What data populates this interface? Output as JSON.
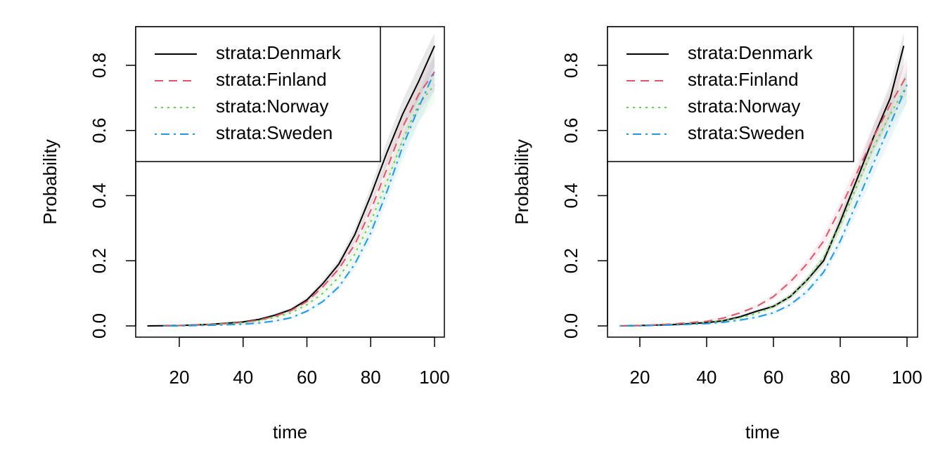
{
  "colors": {
    "Denmark": "#000000",
    "Finland": "#DF536B",
    "Norway": "#61D04F",
    "Sweden": "#2297E6"
  },
  "line_styles": {
    "Denmark": "solid",
    "Finland": "dashed",
    "Norway": "dotted",
    "Sweden": "dotdash"
  },
  "chart_data": [
    {
      "type": "line",
      "xlabel": "time",
      "ylabel": "Probability",
      "xlim": [
        10,
        100
      ],
      "ylim": [
        0,
        0.86
      ],
      "x_ticks": [
        20,
        40,
        60,
        80,
        100
      ],
      "x_tick_labels": [
        "20",
        "40",
        "60",
        "80",
        "100"
      ],
      "y_ticks": [
        0,
        0.2,
        0.4,
        0.6,
        0.8
      ],
      "y_tick_labels": [
        "0.0",
        "0.2",
        "0.4",
        "0.6",
        "0.8"
      ],
      "legend_position": "top-left",
      "confidence_bands": true,
      "series": [
        {
          "name": "strata:Denmark",
          "key": "Denmark",
          "x": [
            10,
            20,
            30,
            40,
            45,
            50,
            55,
            60,
            65,
            70,
            75,
            80,
            85,
            90,
            95,
            100
          ],
          "y": [
            0,
            0.001,
            0.005,
            0.012,
            0.02,
            0.033,
            0.05,
            0.08,
            0.13,
            0.19,
            0.28,
            0.4,
            0.53,
            0.65,
            0.75,
            0.86
          ]
        },
        {
          "name": "strata:Finland",
          "key": "Finland",
          "x": [
            15,
            20,
            30,
            40,
            45,
            50,
            55,
            60,
            65,
            70,
            75,
            80,
            85,
            90,
            95,
            100
          ],
          "y": [
            0,
            0.001,
            0.004,
            0.011,
            0.018,
            0.03,
            0.047,
            0.075,
            0.12,
            0.175,
            0.25,
            0.355,
            0.48,
            0.61,
            0.71,
            0.78
          ]
        },
        {
          "name": "strata:Norway",
          "key": "Norway",
          "x": [
            15,
            20,
            30,
            40,
            45,
            50,
            55,
            60,
            65,
            70,
            75,
            80,
            85,
            90,
            95,
            100
          ],
          "y": [
            0,
            0.001,
            0.004,
            0.01,
            0.016,
            0.026,
            0.04,
            0.065,
            0.1,
            0.15,
            0.22,
            0.32,
            0.44,
            0.57,
            0.68,
            0.74
          ]
        },
        {
          "name": "strata:Sweden",
          "key": "Sweden",
          "x": [
            15,
            20,
            30,
            40,
            45,
            50,
            55,
            60,
            65,
            70,
            75,
            80,
            85,
            90,
            95,
            100
          ],
          "y": [
            0,
            0.0,
            0.002,
            0.005,
            0.009,
            0.015,
            0.025,
            0.045,
            0.075,
            0.12,
            0.19,
            0.285,
            0.41,
            0.55,
            0.67,
            0.78
          ]
        }
      ]
    },
    {
      "type": "line",
      "xlabel": "time",
      "ylabel": "Probability",
      "xlim": [
        14,
        100
      ],
      "ylim": [
        0,
        0.86
      ],
      "x_ticks": [
        20,
        40,
        60,
        80,
        100
      ],
      "x_tick_labels": [
        "20",
        "40",
        "60",
        "80",
        "100"
      ],
      "y_ticks": [
        0,
        0.2,
        0.4,
        0.6,
        0.8
      ],
      "y_tick_labels": [
        "0.0",
        "0.2",
        "0.4",
        "0.6",
        "0.8"
      ],
      "legend_position": "top-left",
      "confidence_bands": true,
      "series": [
        {
          "name": "strata:Denmark",
          "key": "Denmark",
          "x": [
            14,
            20,
            30,
            40,
            45,
            50,
            55,
            60,
            65,
            70,
            75,
            80,
            85,
            90,
            95,
            99
          ],
          "y": [
            0,
            0.001,
            0.004,
            0.01,
            0.016,
            0.028,
            0.045,
            0.06,
            0.09,
            0.14,
            0.2,
            0.32,
            0.45,
            0.58,
            0.7,
            0.86
          ]
        },
        {
          "name": "strata:Finland",
          "key": "Finland",
          "x": [
            14,
            20,
            30,
            40,
            45,
            50,
            55,
            60,
            65,
            70,
            75,
            80,
            85,
            90,
            95,
            100
          ],
          "y": [
            0,
            0.001,
            0.006,
            0.014,
            0.024,
            0.04,
            0.06,
            0.09,
            0.135,
            0.19,
            0.26,
            0.36,
            0.47,
            0.58,
            0.68,
            0.77
          ]
        },
        {
          "name": "strata:Norway",
          "key": "Norway",
          "x": [
            14,
            20,
            30,
            40,
            45,
            50,
            55,
            60,
            65,
            70,
            75,
            80,
            85,
            90,
            95,
            100
          ],
          "y": [
            0,
            0.001,
            0.004,
            0.01,
            0.016,
            0.025,
            0.038,
            0.06,
            0.09,
            0.14,
            0.21,
            0.31,
            0.43,
            0.55,
            0.65,
            0.74
          ]
        },
        {
          "name": "strata:Sweden",
          "key": "Sweden",
          "x": [
            14,
            20,
            30,
            40,
            45,
            50,
            55,
            60,
            65,
            70,
            75,
            80,
            85,
            90,
            95,
            100
          ],
          "y": [
            0,
            0.0,
            0.003,
            0.007,
            0.011,
            0.018,
            0.027,
            0.04,
            0.065,
            0.105,
            0.165,
            0.26,
            0.38,
            0.5,
            0.62,
            0.74
          ]
        }
      ]
    }
  ]
}
